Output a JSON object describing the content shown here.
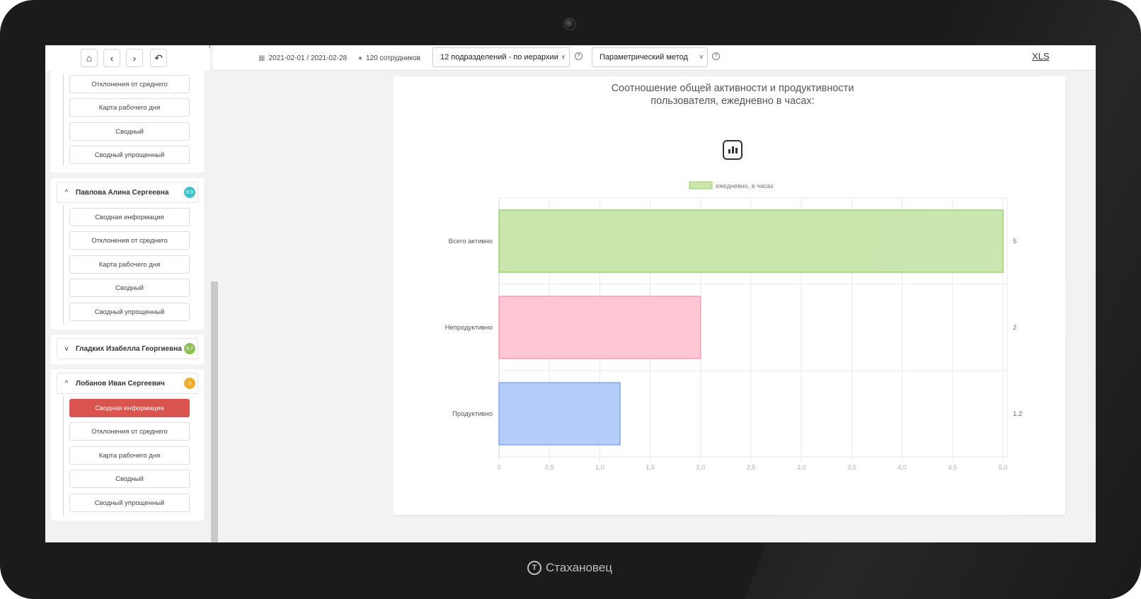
{
  "brand": {
    "name": "Стахановец"
  },
  "toolbar": {
    "period": "2021-02-01 / 2021-02-28",
    "employees": "120 сотрудников",
    "department_select": "12 подразделений - по иерархии",
    "method_select": "Параметрический метод",
    "export_label": "XLS",
    "help_glyph": "?"
  },
  "nav": {
    "home_icon": "⌂",
    "back_icon": "‹",
    "forward_icon": "›",
    "undo_icon": "↶"
  },
  "sidebar": {
    "top_items": [
      "Отклонения от среднего",
      "Карта рабочего дня",
      "Сводный",
      "Сводный упрощенный"
    ],
    "groups": [
      {
        "name": "Павлова Алина Сергеевна",
        "badge": "9.9",
        "badge_color": "#3ec1c9",
        "expanded": true,
        "chevron": "^",
        "items": [
          "Сводная информация",
          "Отклонения от среднего",
          "Карта рабочего дня",
          "Сводный",
          "Сводный упрощенный"
        ]
      },
      {
        "name": "Гладких Изабелла Георгиевна",
        "badge": "9.7",
        "badge_color": "#8cc152",
        "expanded": false,
        "chevron": "v",
        "items": []
      },
      {
        "name": "Лобанов Иван Сергеевич",
        "badge": "3",
        "badge_color": "#f0ad2e",
        "expanded": true,
        "chevron": "^",
        "active_item": "Сводная информация",
        "items": [
          "Сводная информация",
          "Отклонения от среднего",
          "Карта рабочего дня",
          "Сводный",
          "Сводный упрощенный"
        ]
      }
    ]
  },
  "chart_data": {
    "type": "bar",
    "orientation": "horizontal",
    "title": "Соотношение общей активности и продуктивности пользователя, ежедневно в часах:",
    "legend": [
      "ежедневно, в часах"
    ],
    "legend_position": "top",
    "categories": [
      "Всего активно",
      "Непродуктивно",
      "Продуктивно"
    ],
    "values": [
      5,
      2,
      1.2
    ],
    "value_labels": [
      "5",
      "2",
      "1.2"
    ],
    "colors": [
      "#c9e6ad",
      "#ffc7d3",
      "#b6ccfb"
    ],
    "border_colors": [
      "#98d06d",
      "#f79cb2",
      "#7ea6ee"
    ],
    "xlim": [
      0,
      5
    ],
    "xticks": [
      "0",
      "0,5",
      "1,0",
      "1,5",
      "2,0",
      "2,5",
      "3,0",
      "3,5",
      "4,0",
      "4,5",
      "5,0"
    ],
    "grid": true
  }
}
